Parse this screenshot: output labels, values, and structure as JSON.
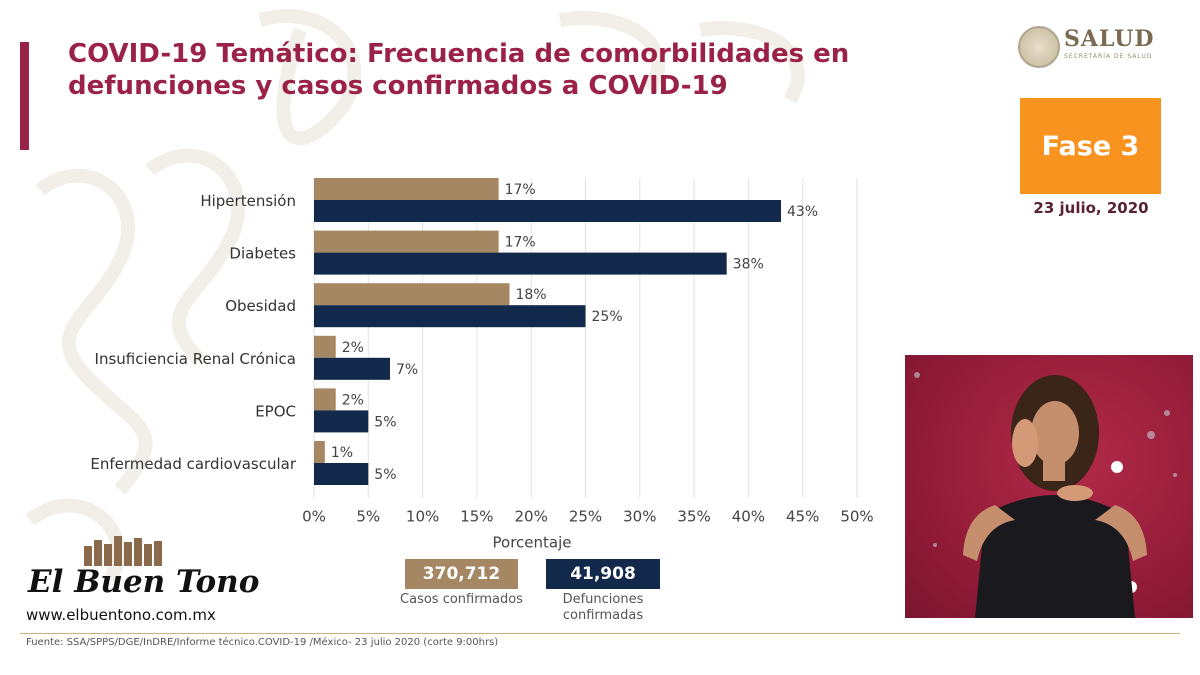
{
  "title": "COVID-19 Temático: Frecuencia de comorbilidades en defunciones y casos confirmados a COVID-19",
  "logo": {
    "word": "SALUD",
    "sub": "SECRETARÍA DE SALUD"
  },
  "phase": "Fase 3",
  "date": "23 julio, 2020",
  "summary": {
    "cases_value": "370,712",
    "cases_label": "Casos confirmados",
    "deaths_value": "41,908",
    "deaths_label": "Defunciones confirmadas"
  },
  "watermark": {
    "name": "El Buen Tono",
    "url": "www.elbuentono.com.mx"
  },
  "footer": "Fuente: SSA/SPPS/DGE/InDRE/Informe técnico.COVID-19 /México- 23 julio 2020 (corte 9:00hrs)",
  "colors": {
    "brand": "#9b2247",
    "cases": "#a58863",
    "deaths": "#13294b",
    "phase": "#f7931e"
  },
  "chart_data": {
    "type": "bar",
    "orientation": "horizontal",
    "categories": [
      "Hipertensión",
      "Diabetes",
      "Obesidad",
      "Insuficiencia Renal Crónica",
      "EPOC",
      "Enfermedad cardiovascular"
    ],
    "series": [
      {
        "name": "Casos confirmados",
        "color": "#a58863",
        "values": [
          17,
          17,
          18,
          2,
          2,
          1
        ],
        "labels": [
          "17%",
          "17%",
          "18%",
          "2%",
          "2%",
          "1%"
        ]
      },
      {
        "name": "Defunciones confirmadas",
        "color": "#13294b",
        "values": [
          43,
          38,
          25,
          7,
          5,
          5
        ],
        "labels": [
          "43%",
          "38%",
          "25%",
          "7%",
          "5%",
          "5%"
        ]
      }
    ],
    "xlim": [
      0,
      50
    ],
    "xticks": [
      "0%",
      "5%",
      "10%",
      "15%",
      "20%",
      "25%",
      "30%",
      "35%",
      "40%",
      "45%",
      "50%"
    ],
    "xlabel": "Porcentaje",
    "grid": true
  }
}
